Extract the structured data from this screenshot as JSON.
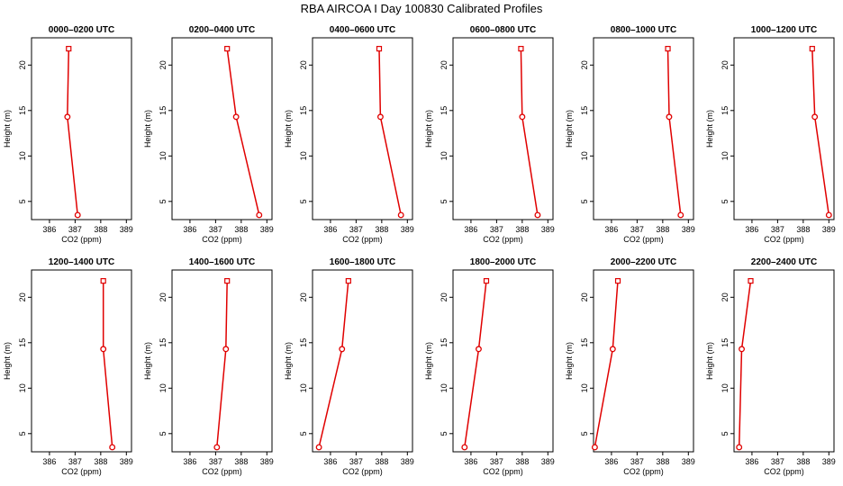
{
  "figure": {
    "title": "RBA AIRCOA I  Day 100830  Calibrated Profiles"
  },
  "chart_data": [
    {
      "type": "line",
      "title": "0000–0200 UTC",
      "xlabel": "CO2 (ppm)",
      "ylabel": "Height (m)",
      "xlim": [
        385.3,
        389.2
      ],
      "ylim": [
        3,
        23
      ],
      "x_ticks": [
        386,
        387,
        388,
        389
      ],
      "y_ticks": [
        5,
        10,
        15,
        20
      ],
      "series": [
        {
          "x": [
            387.1,
            386.7,
            386.75
          ],
          "y": [
            3.5,
            14.3,
            21.8
          ]
        }
      ]
    },
    {
      "type": "line",
      "title": "0200–0400 UTC",
      "xlabel": "CO2 (ppm)",
      "ylabel": "Height (m)",
      "xlim": [
        385.3,
        389.2
      ],
      "ylim": [
        3,
        23
      ],
      "x_ticks": [
        386,
        387,
        388,
        389
      ],
      "y_ticks": [
        5,
        10,
        15,
        20
      ],
      "series": [
        {
          "x": [
            388.7,
            387.8,
            387.45
          ],
          "y": [
            3.5,
            14.3,
            21.8
          ]
        }
      ]
    },
    {
      "type": "line",
      "title": "0400–0600 UTC",
      "xlabel": "CO2 (ppm)",
      "ylabel": "Height (m)",
      "xlim": [
        385.3,
        389.2
      ],
      "ylim": [
        3,
        23
      ],
      "x_ticks": [
        386,
        387,
        388,
        389
      ],
      "y_ticks": [
        5,
        10,
        15,
        20
      ],
      "series": [
        {
          "x": [
            388.75,
            387.95,
            387.9
          ],
          "y": [
            3.5,
            14.3,
            21.8
          ]
        }
      ]
    },
    {
      "type": "line",
      "title": "0600–0800 UTC",
      "xlabel": "CO2 (ppm)",
      "ylabel": "Height (m)",
      "xlim": [
        385.3,
        389.2
      ],
      "ylim": [
        3,
        23
      ],
      "x_ticks": [
        386,
        387,
        388,
        389
      ],
      "y_ticks": [
        5,
        10,
        15,
        20
      ],
      "series": [
        {
          "x": [
            388.6,
            388.0,
            387.95
          ],
          "y": [
            3.5,
            14.3,
            21.8
          ]
        }
      ]
    },
    {
      "type": "line",
      "title": "0800–1000 UTC",
      "xlabel": "CO2 (ppm)",
      "ylabel": "Height (m)",
      "xlim": [
        385.3,
        389.2
      ],
      "ylim": [
        3,
        23
      ],
      "x_ticks": [
        386,
        387,
        388,
        389
      ],
      "y_ticks": [
        5,
        10,
        15,
        20
      ],
      "series": [
        {
          "x": [
            388.7,
            388.25,
            388.2
          ],
          "y": [
            3.5,
            14.3,
            21.8
          ]
        }
      ]
    },
    {
      "type": "line",
      "title": "1000–1200 UTC",
      "xlabel": "CO2 (ppm)",
      "ylabel": "Height (m)",
      "xlim": [
        385.3,
        389.2
      ],
      "ylim": [
        3,
        23
      ],
      "x_ticks": [
        386,
        387,
        388,
        389
      ],
      "y_ticks": [
        5,
        10,
        15,
        20
      ],
      "series": [
        {
          "x": [
            389.0,
            388.45,
            388.35
          ],
          "y": [
            3.5,
            14.3,
            21.8
          ]
        }
      ]
    },
    {
      "type": "line",
      "title": "1200–1400 UTC",
      "xlabel": "CO2 (ppm)",
      "ylabel": "Height (m)",
      "xlim": [
        385.3,
        389.2
      ],
      "ylim": [
        3,
        23
      ],
      "x_ticks": [
        386,
        387,
        388,
        389
      ],
      "y_ticks": [
        5,
        10,
        15,
        20
      ],
      "series": [
        {
          "x": [
            388.45,
            388.1,
            388.1
          ],
          "y": [
            3.5,
            14.3,
            21.8
          ]
        }
      ]
    },
    {
      "type": "line",
      "title": "1400–1600 UTC",
      "xlabel": "CO2 (ppm)",
      "ylabel": "Height (m)",
      "xlim": [
        385.3,
        389.2
      ],
      "ylim": [
        3,
        23
      ],
      "x_ticks": [
        386,
        387,
        388,
        389
      ],
      "y_ticks": [
        5,
        10,
        15,
        20
      ],
      "series": [
        {
          "x": [
            387.05,
            387.4,
            387.45
          ],
          "y": [
            3.5,
            14.3,
            21.8
          ]
        }
      ]
    },
    {
      "type": "line",
      "title": "1600–1800 UTC",
      "xlabel": "CO2 (ppm)",
      "ylabel": "Height (m)",
      "xlim": [
        385.3,
        389.2
      ],
      "ylim": [
        3,
        23
      ],
      "x_ticks": [
        386,
        387,
        388,
        389
      ],
      "y_ticks": [
        5,
        10,
        15,
        20
      ],
      "series": [
        {
          "x": [
            385.55,
            386.45,
            386.7
          ],
          "y": [
            3.5,
            14.3,
            21.8
          ]
        }
      ]
    },
    {
      "type": "line",
      "title": "1800–2000 UTC",
      "xlabel": "CO2 (ppm)",
      "ylabel": "Height (m)",
      "xlim": [
        385.3,
        389.2
      ],
      "ylim": [
        3,
        23
      ],
      "x_ticks": [
        386,
        387,
        388,
        389
      ],
      "y_ticks": [
        5,
        10,
        15,
        20
      ],
      "series": [
        {
          "x": [
            385.75,
            386.3,
            386.6
          ],
          "y": [
            3.5,
            14.3,
            21.8
          ]
        }
      ]
    },
    {
      "type": "line",
      "title": "2000–2200 UTC",
      "xlabel": "CO2 (ppm)",
      "ylabel": "Height (m)",
      "xlim": [
        385.3,
        389.2
      ],
      "ylim": [
        3,
        23
      ],
      "x_ticks": [
        386,
        387,
        388,
        389
      ],
      "y_ticks": [
        5,
        10,
        15,
        20
      ],
      "series": [
        {
          "x": [
            385.35,
            386.05,
            386.25
          ],
          "y": [
            3.5,
            14.3,
            21.8
          ]
        }
      ]
    },
    {
      "type": "line",
      "title": "2200–2400 UTC",
      "xlabel": "CO2 (ppm)",
      "ylabel": "Height (m)",
      "xlim": [
        385.3,
        389.2
      ],
      "ylim": [
        3,
        23
      ],
      "x_ticks": [
        386,
        387,
        388,
        389
      ],
      "y_ticks": [
        5,
        10,
        15,
        20
      ],
      "series": [
        {
          "x": [
            385.5,
            385.6,
            385.95
          ],
          "y": [
            3.5,
            14.3,
            21.8
          ]
        }
      ]
    }
  ],
  "colors": {
    "series": "#e00000",
    "axes": "#000000",
    "background": "#ffffff"
  }
}
